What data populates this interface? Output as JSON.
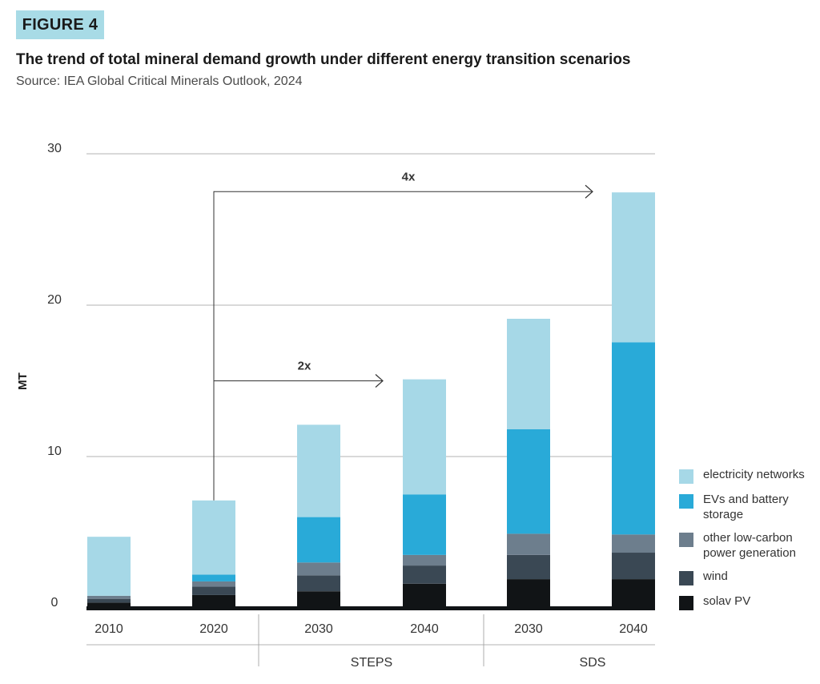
{
  "figure_tag": "FIGURE 4",
  "title": "The trend of total mineral demand growth under different energy transition scenarios",
  "source": "Source: IEA Global Critical Minerals Outlook, 2024",
  "chart_data": {
    "type": "bar",
    "stacked": true,
    "ylabel": "MT",
    "ylim": [
      0,
      30
    ],
    "yticks": [
      0,
      10,
      20,
      30
    ],
    "grid": true,
    "legend_position": "right",
    "categories": [
      "2010",
      "2020",
      "2030",
      "2040",
      "2030",
      "2040"
    ],
    "groups": [
      {
        "label": "",
        "categories": [
          "2010",
          "2020"
        ]
      },
      {
        "label": "STEPS",
        "categories": [
          "2030",
          "2040"
        ]
      },
      {
        "label": "SDS",
        "categories": [
          "2030",
          "2040"
        ]
      }
    ],
    "series": [
      {
        "name": "solav PV",
        "color": "#111416",
        "values": [
          0.35,
          0.85,
          1.1,
          1.6,
          1.9,
          1.9
        ]
      },
      {
        "name": "wind",
        "color": "#3a4854",
        "values": [
          0.25,
          0.55,
          1.05,
          1.2,
          1.6,
          1.75
        ]
      },
      {
        "name": "other low-carbon power generation",
        "color": "#6d7e8d",
        "values": [
          0.2,
          0.35,
          0.85,
          0.7,
          1.4,
          1.2
        ]
      },
      {
        "name": "EVs and battery storage",
        "color": "#29aad8",
        "values": [
          0,
          0.45,
          3.0,
          4.0,
          6.9,
          12.7
        ]
      },
      {
        "name": "electricity networks",
        "color": "#a6d8e7",
        "values": [
          3.9,
          4.9,
          6.1,
          7.6,
          7.3,
          9.9
        ]
      }
    ],
    "annotations": [
      {
        "text": "2x",
        "from_category_index": 1,
        "to_category_index": 3,
        "y": 15
      },
      {
        "text": "4x",
        "from_category_index": 1,
        "to_category_index": 5,
        "y": 27.5
      }
    ]
  }
}
